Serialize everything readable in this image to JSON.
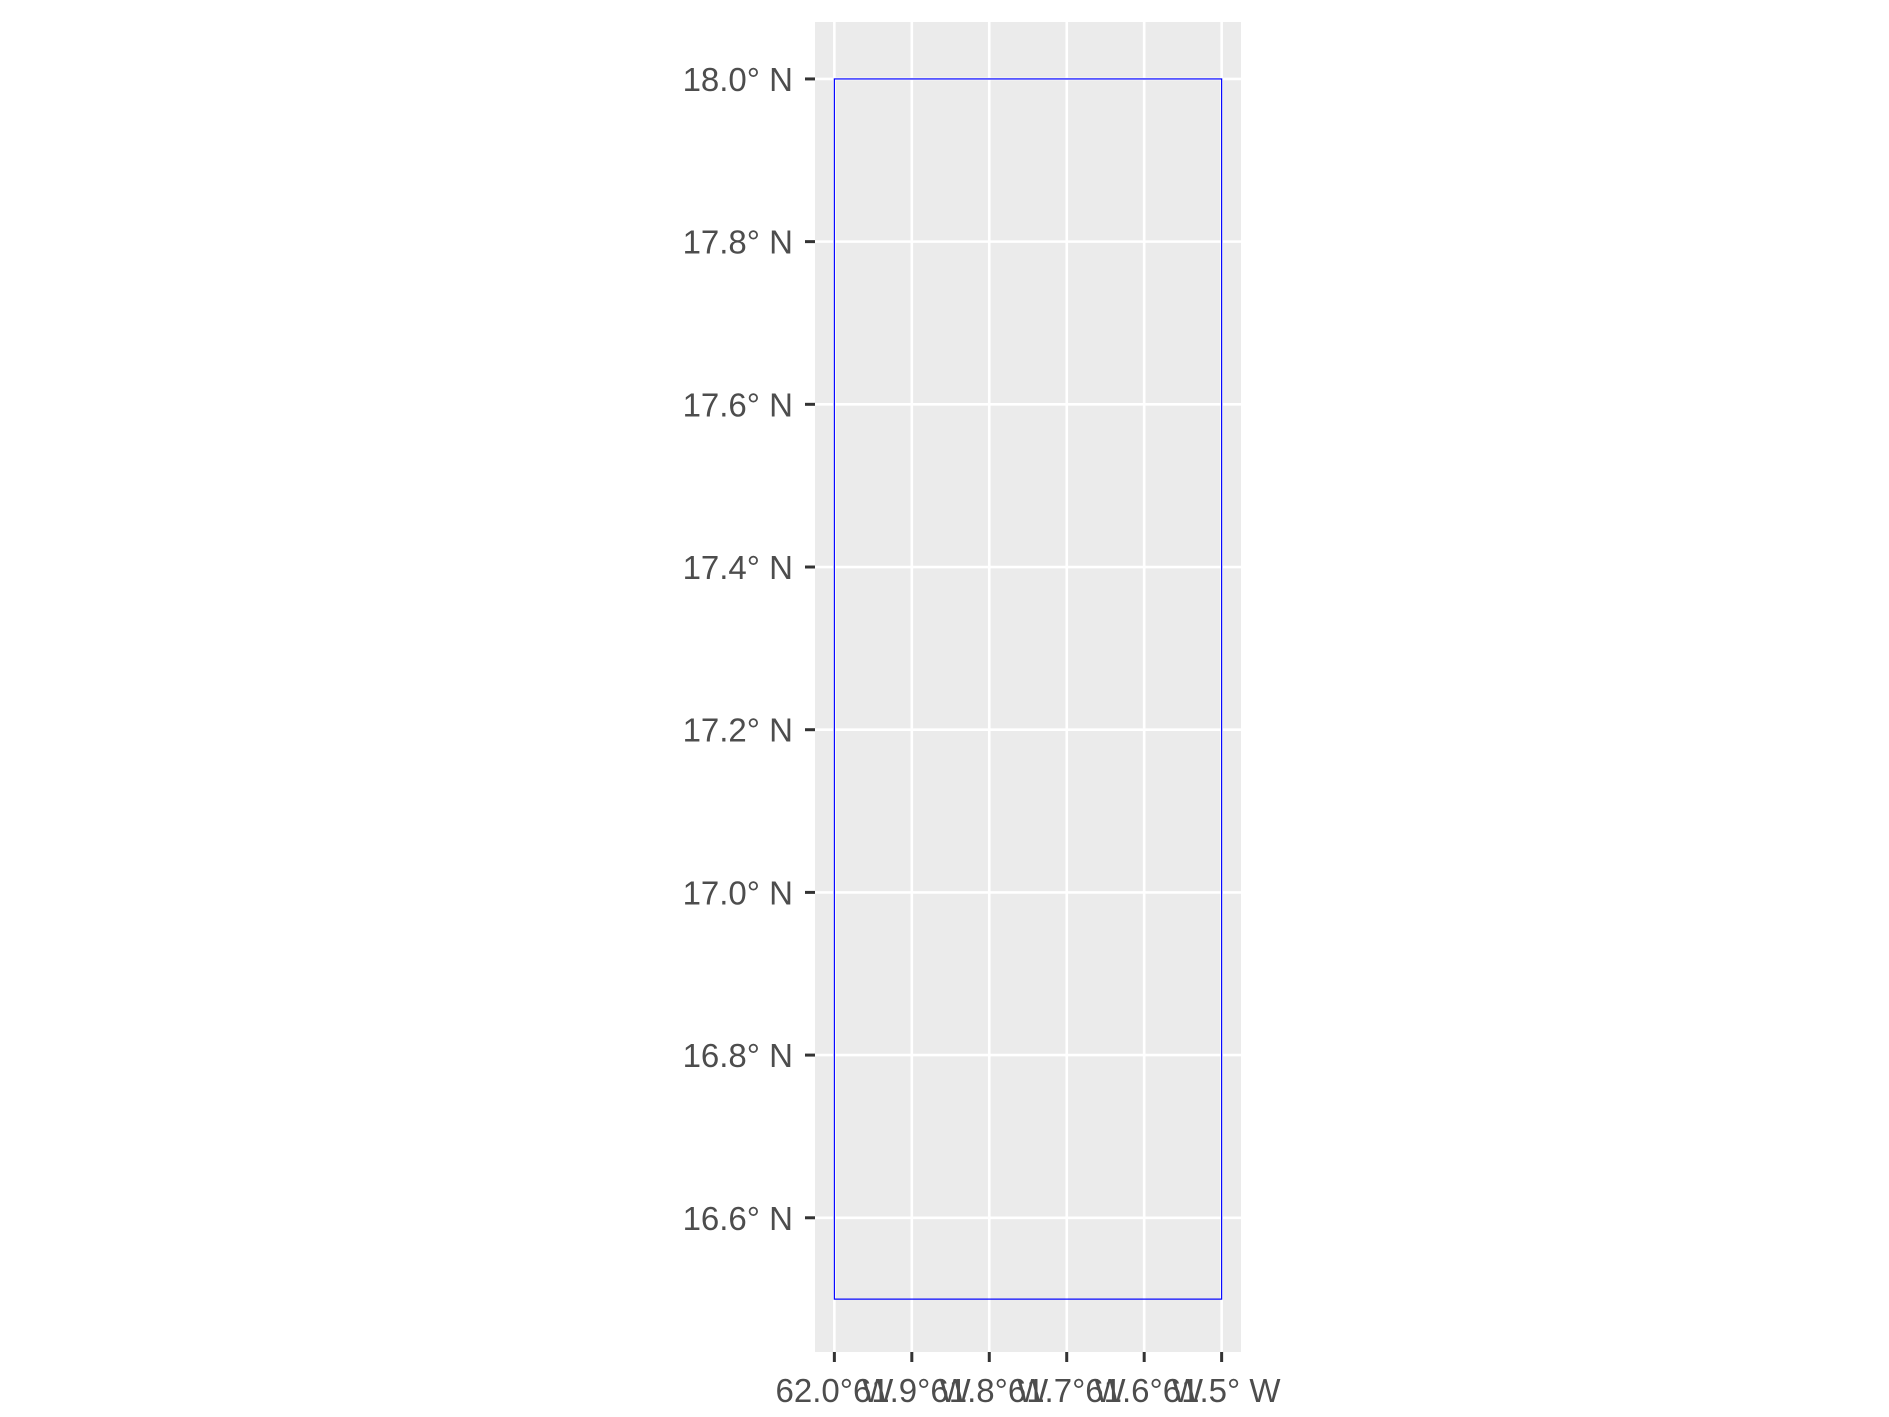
{
  "chart_data": {
    "type": "map",
    "title": "",
    "xlabel": "",
    "ylabel": "",
    "grid": true,
    "legend": "none",
    "xlim": [
      -62.025,
      -61.475
    ],
    "ylim": [
      16.435,
      18.07
    ],
    "x_ticks": [
      {
        "value": -62.0,
        "label": "62.0° W"
      },
      {
        "value": -61.9,
        "label": "61.9° W"
      },
      {
        "value": -61.8,
        "label": "61.8° W"
      },
      {
        "value": -61.7,
        "label": "61.7° W"
      },
      {
        "value": -61.6,
        "label": "61.6° W"
      },
      {
        "value": -61.5,
        "label": "61.5° W"
      }
    ],
    "y_ticks": [
      {
        "value": 16.6,
        "label": "16.6° N"
      },
      {
        "value": 16.8,
        "label": "16.8° N"
      },
      {
        "value": 17.0,
        "label": "17.0° N"
      },
      {
        "value": 17.2,
        "label": "17.2° N"
      },
      {
        "value": 17.4,
        "label": "17.4° N"
      },
      {
        "value": 17.6,
        "label": "17.6° N"
      },
      {
        "value": 17.8,
        "label": "17.8° N"
      },
      {
        "value": 18.0,
        "label": "18.0° N"
      }
    ],
    "bbox_polygon": {
      "xmin": -62.0,
      "xmax": -61.5,
      "ymin": 16.5,
      "ymax": 18.0,
      "color": "#0000ff"
    },
    "colors": {
      "panel": "#ebebeb",
      "grid": "#ffffff",
      "text": "#4d4d4d",
      "ticks": "#333333"
    }
  }
}
